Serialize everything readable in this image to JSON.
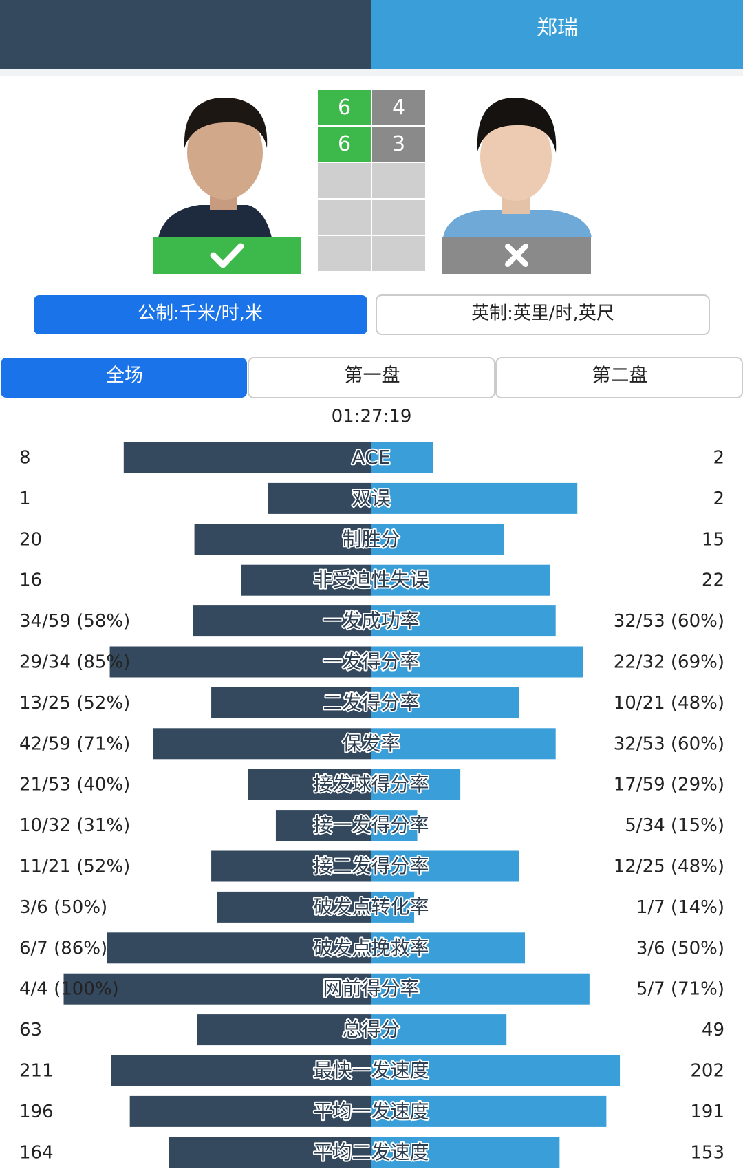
{
  "header": {
    "right_player": "郑瑞"
  },
  "score": {
    "sets": [
      [
        6,
        4
      ],
      [
        6,
        3
      ]
    ]
  },
  "units": [
    "公制:千米/时,米",
    "英制:英里/时,英尺"
  ],
  "tabs": [
    "全场",
    "第一盘",
    "第二盘"
  ],
  "duration": "01:27:19",
  "stats": [
    {
      "name": "ACE",
      "left": 8,
      "right": 2
    },
    {
      "name": "双误",
      "left": 1,
      "right": 2
    },
    {
      "name": "制胜分",
      "left": 20,
      "right": 15
    },
    {
      "name": "非受迫性失误",
      "left": 16,
      "right": 22
    },
    {
      "name": "一发成功率",
      "left": 58,
      "right": 60,
      "left_label": "34/59 (58%)",
      "right_label": "32/53 (60%)"
    },
    {
      "name": "一发得分率",
      "left": 85,
      "right": 69,
      "left_label": "29/34 (85%)",
      "right_label": "22/32 (69%)"
    },
    {
      "name": "二发得分率",
      "left": 52,
      "right": 48,
      "left_label": "13/25 (52%)",
      "right_label": "10/21 (48%)"
    },
    {
      "name": "保发率",
      "left": 71,
      "right": 60,
      "left_label": "42/59 (71%)",
      "right_label": "32/53 (60%)"
    },
    {
      "name": "接发球得分率",
      "left": 40,
      "right": 29,
      "left_label": "21/53 (40%)",
      "right_label": "17/59 (29%)"
    },
    {
      "name": "接一发得分率",
      "left": 31,
      "right": 15,
      "left_label": "10/32 (31%)",
      "right_label": "5/34 (15%)"
    },
    {
      "name": "接二发得分率",
      "left": 52,
      "right": 48,
      "left_label": "11/21 (52%)",
      "right_label": "12/25 (48%)"
    },
    {
      "name": "破发点转化率",
      "left": 50,
      "right": 14,
      "left_label": "3/6 (50%)",
      "right_label": "1/7 (14%)"
    },
    {
      "name": "破发点挽救率",
      "left": 86,
      "right": 50,
      "left_label": "6/7 (86%)",
      "right_label": "3/6 (50%)"
    },
    {
      "name": "网前得分率",
      "left": 100,
      "right": 71,
      "left_label": "4/4 (100%)",
      "right_label": "5/7 (71%)"
    },
    {
      "name": "总得分",
      "left": 63,
      "right": 49
    },
    {
      "name": "最快一发速度",
      "left": 211,
      "right": 202
    },
    {
      "name": "平均一发速度",
      "left": 196,
      "right": 191
    },
    {
      "name": "平均二发速度",
      "left": 164,
      "right": 153
    }
  ]
}
